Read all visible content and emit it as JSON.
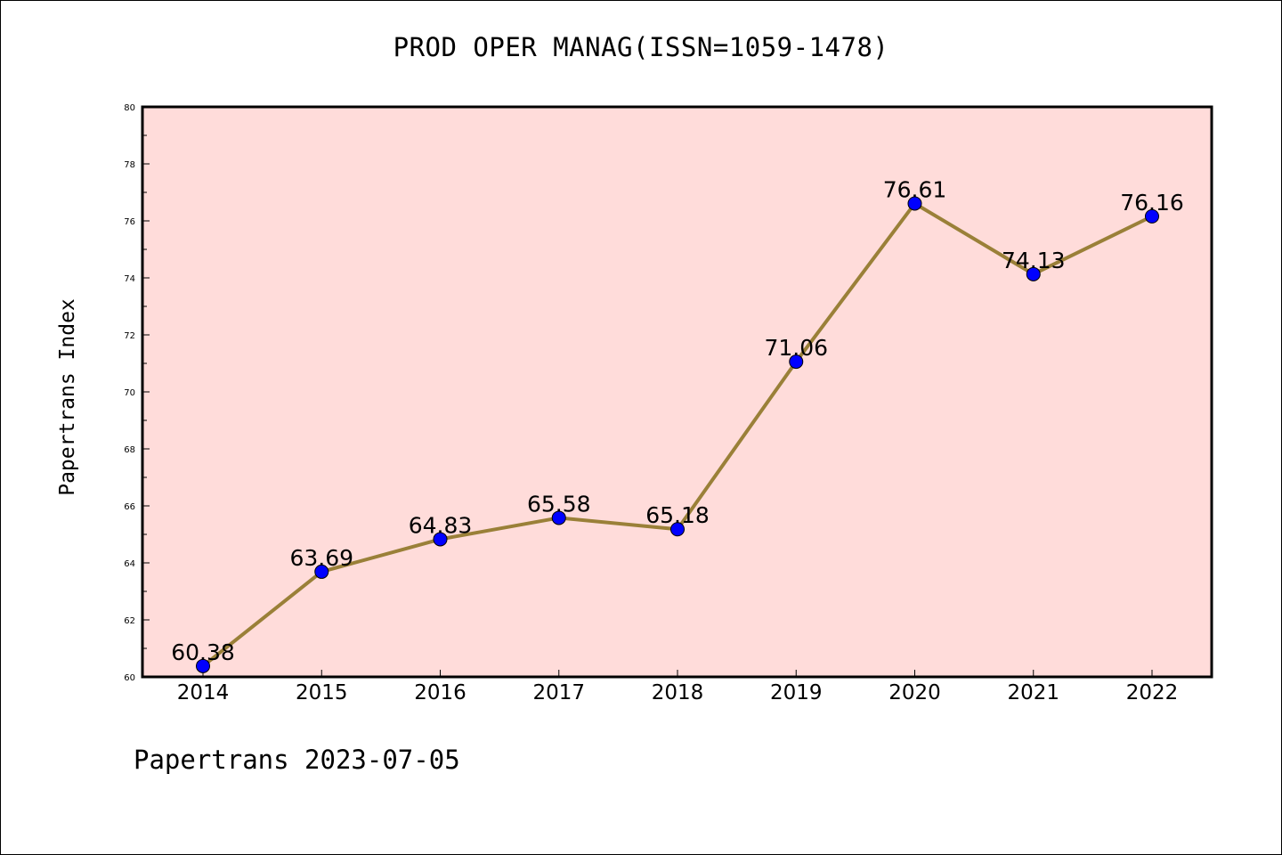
{
  "title": "PROD OPER MANAG(ISSN=1059-1478)",
  "ylabel": "Papertrans Index",
  "footer": "Papertrans 2023-07-05",
  "colors": {
    "plot_background": "#ffdcda",
    "line": "#9a8038",
    "marker": "#0000ff"
  },
  "chart_data": {
    "type": "line",
    "title": "PROD OPER MANAG(ISSN=1059-1478)",
    "xlabel": "",
    "ylabel": "Papertrans Index",
    "categories": [
      "2014",
      "2015",
      "2016",
      "2017",
      "2018",
      "2019",
      "2020",
      "2021",
      "2022"
    ],
    "series": [
      {
        "values": [
          60.38,
          63.69,
          64.83,
          65.58,
          65.18,
          71.06,
          76.61,
          74.13,
          76.16
        ],
        "labels": [
          "60.38",
          "63.69",
          "64.83",
          "65.58",
          "65.18",
          "71.06",
          "76.61",
          "74.13",
          "76.16"
        ]
      }
    ],
    "ylim": [
      60,
      80
    ],
    "yticks": [
      "60",
      "62",
      "64",
      "66",
      "68",
      "70",
      "72",
      "74",
      "76",
      "78",
      "80"
    ],
    "grid": false,
    "legend": "none"
  }
}
